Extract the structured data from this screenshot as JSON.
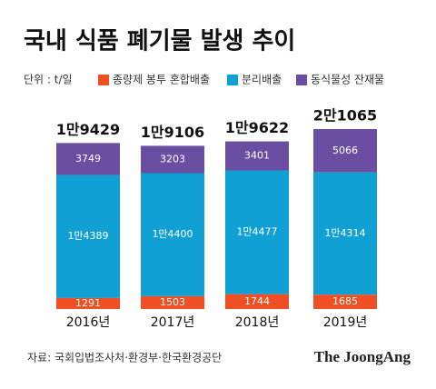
{
  "chart_data": {
    "type": "stacked-bar",
    "title": "국내 식품 폐기물 발생 추이",
    "unit": "단위 : t/일",
    "categories": [
      "2016년",
      "2017년",
      "2018년",
      "2019년"
    ],
    "series": [
      {
        "name": "종량제 봉투 혼합배출",
        "color": "#f04e23",
        "values": [
          1291,
          1503,
          1744,
          1685
        ]
      },
      {
        "name": "분리배출",
        "color": "#10a0d4",
        "values": [
          14389,
          14400,
          14477,
          14314
        ],
        "value_labels": [
          "1만4389",
          "1만4400",
          "1만4477",
          "1만4314"
        ]
      },
      {
        "name": "동식물성 잔재물",
        "color": "#6a4ea1",
        "values": [
          3749,
          3203,
          3401,
          5066
        ]
      }
    ],
    "totals": [
      19429,
      19106,
      19622,
      21065
    ],
    "total_labels": [
      "1만9429",
      "1만9106",
      "1만9622",
      "2만1065"
    ],
    "source": "자료: 국회입법조사처·환경부·한국환경공단",
    "brand": "The JoongAng"
  }
}
